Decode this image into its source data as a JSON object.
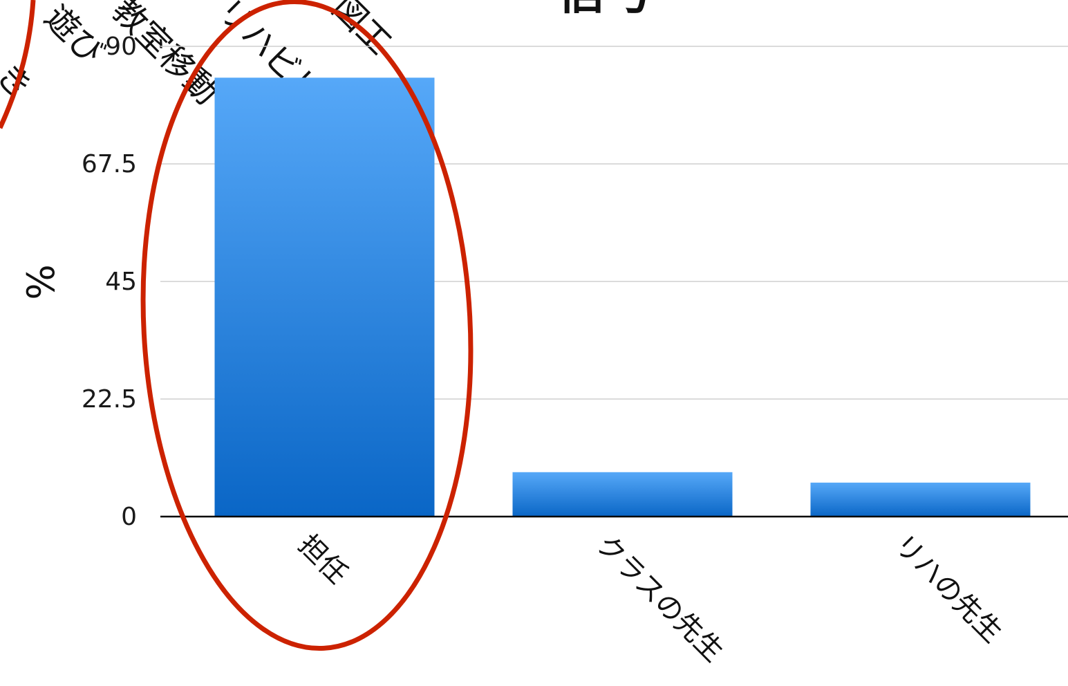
{
  "chart_data": {
    "type": "bar",
    "title_fragment": "信号",
    "ylabel": "%",
    "ylim": [
      0,
      90
    ],
    "yticks": [
      "0",
      "22.5",
      "45",
      "67.5",
      "90"
    ],
    "categories": [
      "担任",
      "クラスの先生",
      "リハの先生"
    ],
    "values": [
      84,
      8.5,
      6.5
    ],
    "bar_color_top": "#56a8f8",
    "bar_color_bottom": "#0a66c6",
    "highlight_color": "#cc2200",
    "cropped_labels": [
      "遊び",
      "教室移動",
      "リハビリ",
      "図工",
      "き"
    ]
  }
}
